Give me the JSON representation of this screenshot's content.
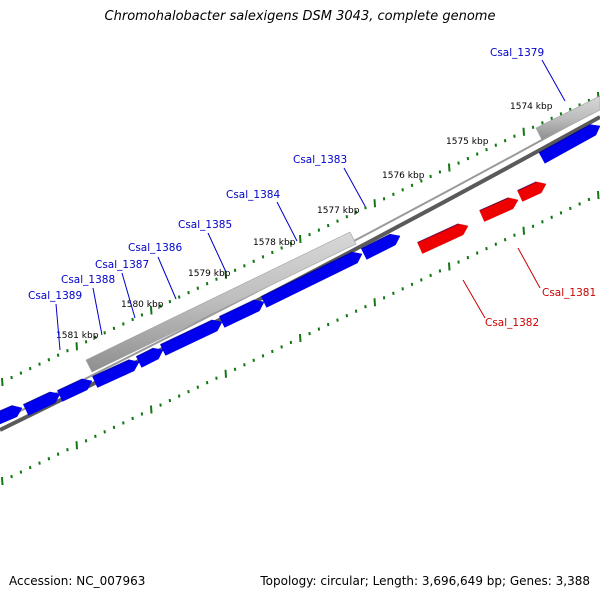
{
  "title": "Chromohalobacter salexigens DSM 3043, complete genome",
  "footer": {
    "accession": "Accession: NC_007963",
    "summary": "Topology: circular; Length: 3,696,649 bp; Genes: 3,388"
  },
  "colors": {
    "forward_gene": "#0000ee",
    "reverse_gene": "#ee0000",
    "operon": "#b4b4b4",
    "ticks": "#117711",
    "backbone": "#777777"
  },
  "kbp_ticks": [
    "1574 kbp",
    "1575 kbp",
    "1576 kbp",
    "1577 kbp",
    "1578 kbp",
    "1579 kbp",
    "1580 kbp",
    "1581 kbp"
  ],
  "gene_labels_forward": [
    "Csal_1379",
    "Csal_1383",
    "Csal_1384",
    "Csal_1385",
    "Csal_1386",
    "Csal_1387",
    "Csal_1388",
    "Csal_1389"
  ],
  "gene_labels_reverse": [
    "Csal_1381",
    "Csal_1382"
  ]
}
